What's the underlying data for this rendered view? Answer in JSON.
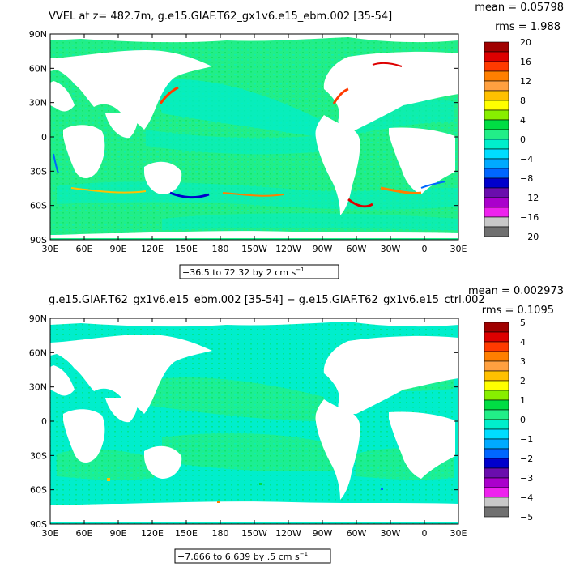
{
  "chart_data": [
    {
      "type": "heatmap",
      "title": "VVEL at z= 482.7m, g.e15.GIAF.T62_gx1v6.e15_ebm.002 [35-54]",
      "stats": {
        "mean": "mean = 0.05798",
        "rms": "rms = 1.988"
      },
      "range_label": "−36.5 to 72.32 by 2 cm s",
      "range_unit_exp": "−1",
      "x_ticks": [
        "30E",
        "60E",
        "90E",
        "120E",
        "150E",
        "180",
        "150W",
        "120W",
        "90W",
        "60W",
        "30W",
        "0",
        "30E"
      ],
      "y_ticks": [
        "90N",
        "60N",
        "30N",
        "0",
        "30S",
        "60S",
        "90S"
      ],
      "colorbar": {
        "labels": [
          "20",
          "16",
          "12",
          "8",
          "4",
          "0",
          "−4",
          "−8",
          "−12",
          "−16",
          "−20"
        ],
        "colors": [
          "#a00000",
          "#dd0000",
          "#ff3a00",
          "#ff7f00",
          "#ffa040",
          "#ffc000",
          "#ffff00",
          "#88ee00",
          "#00dd44",
          "#22ee88",
          "#00eecc",
          "#00ddff",
          "#00aaff",
          "#0066ff",
          "#0000cc",
          "#6a0dad",
          "#aa00cc",
          "#ee22ee",
          "#c8c8c8",
          "#707070"
        ]
      },
      "ocean_background": "#22ee88"
    },
    {
      "type": "heatmap",
      "title": "g.e15.GIAF.T62_gx1v6.e15_ebm.002 [35-54] − g.e15.GIAF.T62_gx1v6.e15_ctrl.002",
      "stats": {
        "mean": "mean = 0.002973",
        "rms": "rms = 0.1095"
      },
      "range_label": "−7.666 to 6.639 by .5 cm s",
      "range_unit_exp": "−1",
      "x_ticks": [
        "30E",
        "60E",
        "90E",
        "120E",
        "150E",
        "180",
        "150W",
        "120W",
        "90W",
        "60W",
        "30W",
        "0",
        "30E"
      ],
      "y_ticks": [
        "90N",
        "60N",
        "30N",
        "0",
        "30S",
        "60S",
        "90S"
      ],
      "colorbar": {
        "labels": [
          "5",
          "4",
          "3",
          "2",
          "1",
          "0",
          "−1",
          "−2",
          "−3",
          "−4",
          "−5"
        ],
        "colors": [
          "#a00000",
          "#dd0000",
          "#ff3a00",
          "#ff7f00",
          "#ffa040",
          "#ffc000",
          "#ffff00",
          "#88ee00",
          "#00dd44",
          "#22ee88",
          "#00eecc",
          "#00ddff",
          "#00aaff",
          "#0066ff",
          "#0000cc",
          "#6a0dad",
          "#aa00cc",
          "#ee22ee",
          "#c8c8c8",
          "#707070"
        ]
      },
      "ocean_background": "#22ee88"
    }
  ]
}
